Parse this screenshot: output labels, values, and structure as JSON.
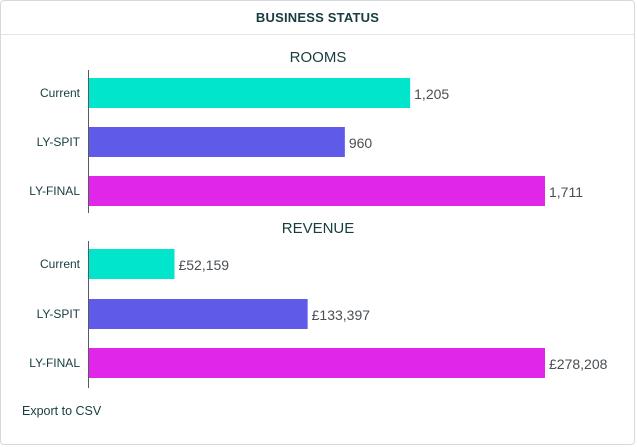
{
  "header": {
    "title": "BUSINESS STATUS"
  },
  "footer": {
    "export_label": "Export to CSV"
  },
  "chart_data": [
    {
      "type": "bar",
      "orientation": "horizontal",
      "title": "ROOMS",
      "categories": [
        "Current",
        "LY-SPIT",
        "LY-FINAL"
      ],
      "values": [
        1205,
        960,
        1711
      ],
      "value_labels": [
        "1,205",
        "960",
        "1,711"
      ],
      "colors": [
        "#00e5cc",
        "#5f5be8",
        "#e026e8"
      ],
      "xlim": [
        0,
        1711
      ],
      "grid": false
    },
    {
      "type": "bar",
      "orientation": "horizontal",
      "title": "REVENUE",
      "categories": [
        "Current",
        "LY-SPIT",
        "LY-FINAL"
      ],
      "values": [
        52159,
        133397,
        278208
      ],
      "value_labels": [
        "£52,159",
        "£133,397",
        "£278,208"
      ],
      "colors": [
        "#00e5cc",
        "#5f5be8",
        "#e026e8"
      ],
      "xlim": [
        0,
        278208
      ],
      "grid": false
    }
  ]
}
